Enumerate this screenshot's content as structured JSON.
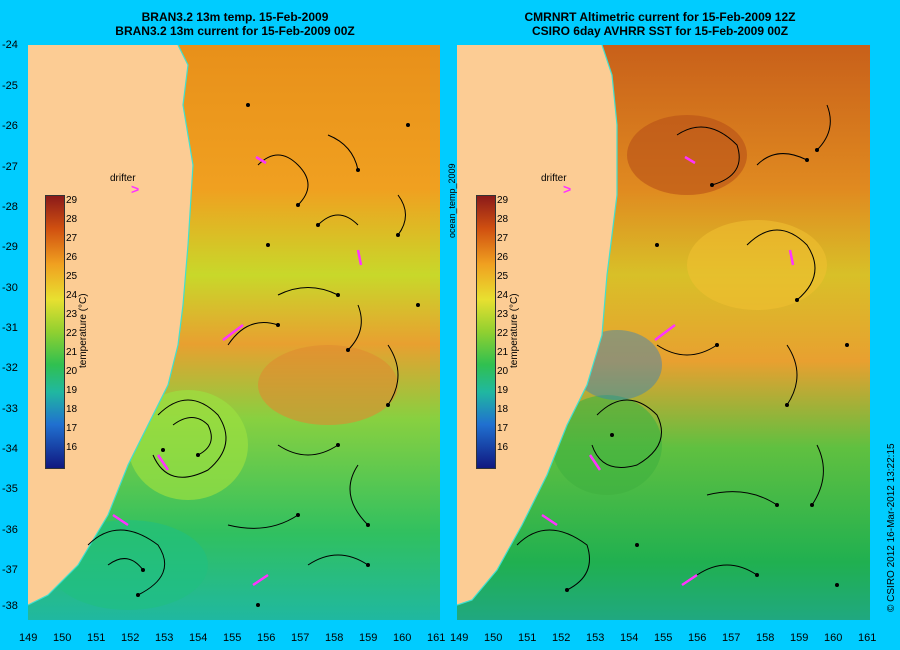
{
  "left_panel": {
    "title_line1": "BRAN3.2 13m temp. 15-Feb-2009",
    "title_line2": "BRAN3.2 13m current for 15-Feb-2009 00Z",
    "colorbar_label": "temperature (°C)",
    "drifter_label": "drifter"
  },
  "right_panel": {
    "title_line1": "CMRNRT Altimetric current for 15-Feb-2009 12Z",
    "title_line2": "CSIRO 6day AVHRR SST for 15-Feb-2009 00Z",
    "colorbar_label": "temperature (°C)",
    "drifter_label": "drifter"
  },
  "middle_label": "ocean_temp_2009",
  "side_text": "© CSIRO 2012  16-Mar-2012 13:22:15",
  "lat_ticks": [
    "-24",
    "-25",
    "-26",
    "-27",
    "-28",
    "-29",
    "-30",
    "-31",
    "-32",
    "-33",
    "-34",
    "-35",
    "-36",
    "-37",
    "-38"
  ],
  "lon_ticks": [
    "149",
    "150",
    "151",
    "152",
    "153",
    "154",
    "155",
    "156",
    "157",
    "158",
    "159",
    "160",
    "161"
  ],
  "colorbar_ticks": [
    "29",
    "28",
    "27",
    "26",
    "25",
    "24",
    "23",
    "22",
    "21",
    "20",
    "19",
    "18",
    "17",
    "16"
  ],
  "drifter_symbol": ">",
  "colors": {
    "background": "#00ccff",
    "land": "#fccc94",
    "drifter": "#ff33ff",
    "coastline": "#40e0d0"
  }
}
